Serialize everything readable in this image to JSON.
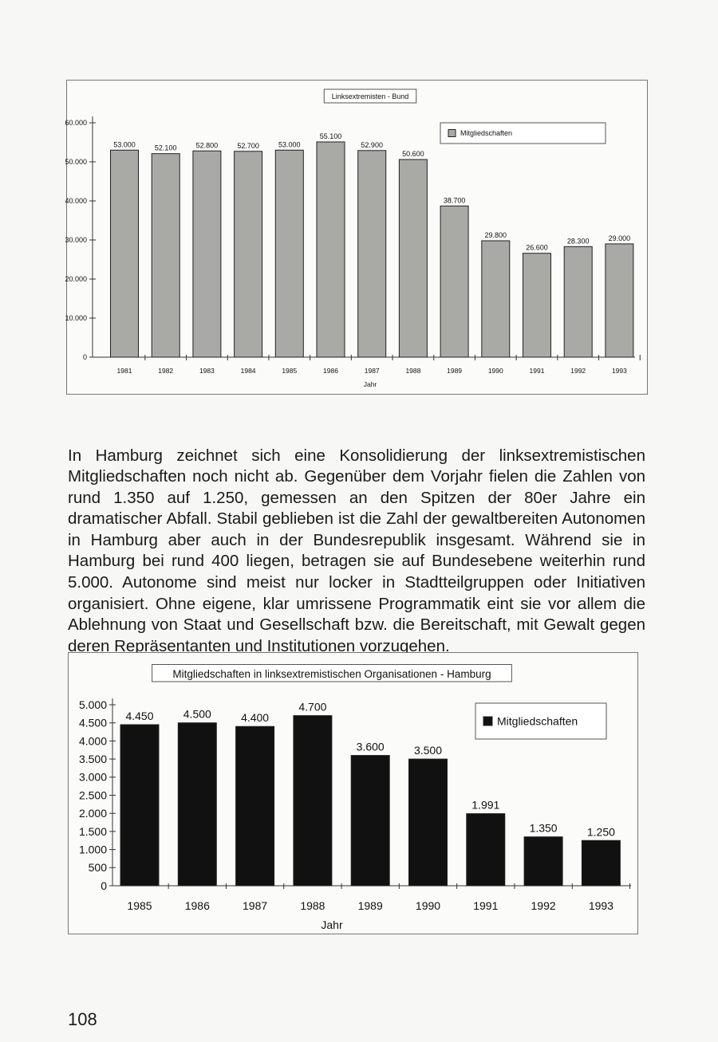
{
  "chart_data": [
    {
      "type": "bar",
      "title": "Linksextremisten - Bund",
      "xlabel": "Jahr",
      "ylabel": "",
      "legend": {
        "label": "Mitgliedschaften",
        "placement": "top-right"
      },
      "categories": [
        "1981",
        "1982",
        "1983",
        "1984",
        "1985",
        "1986",
        "1987",
        "1988",
        "1989",
        "1990",
        "1991",
        "1992",
        "1993"
      ],
      "values": [
        53000,
        52100,
        52800,
        52700,
        53000,
        55100,
        52900,
        50600,
        38700,
        29800,
        26600,
        28300,
        29000
      ],
      "value_labels": [
        "53.000",
        "52.100",
        "52.800",
        "52.700",
        "53.000",
        "55.100",
        "52.900",
        "50.600",
        "38.700",
        "29.800",
        "26.600",
        "28.300",
        "29.000"
      ],
      "ylim": [
        0,
        60000
      ],
      "yticks": [
        0,
        10000,
        20000,
        30000,
        40000,
        50000,
        60000
      ],
      "ytick_labels": [
        "0",
        "10.000",
        "20.000",
        "30.000",
        "40.000",
        "50.000",
        "60.000"
      ],
      "bar_color": "#a9a9a6",
      "grid": false
    },
    {
      "type": "bar",
      "title": "Mitgliedschaften in linksextremistischen Organisationen - Hamburg",
      "xlabel": "Jahr",
      "ylabel": "",
      "legend": {
        "label": "Mitgliedschaften",
        "placement": "top-right"
      },
      "categories": [
        "1985",
        "1986",
        "1987",
        "1988",
        "1989",
        "1990",
        "1991",
        "1992",
        "1993"
      ],
      "values": [
        4450,
        4500,
        4400,
        4700,
        3600,
        3500,
        1991,
        1350,
        1250
      ],
      "value_labels": [
        "4.450",
        "4.500",
        "4.400",
        "4.700",
        "3.600",
        "3.500",
        "1.991",
        "1.350",
        "1.250"
      ],
      "ylim": [
        0,
        5000
      ],
      "yticks": [
        0,
        500,
        1000,
        1500,
        2000,
        2500,
        3000,
        3500,
        4000,
        4500,
        5000
      ],
      "ytick_labels": [
        "0",
        "500",
        "1.000",
        "1.500",
        "2.000",
        "2.500",
        "3.000",
        "3.500",
        "4.000",
        "4.500",
        "5.000"
      ],
      "bar_color": "#111111",
      "grid": false
    }
  ],
  "text": "In Hamburg zeichnet sich eine Konsolidierung der linksextremistischen Mitgliedschaften noch nicht ab. Gegenüber dem Vorjahr fielen die Zahlen von rund 1.350 auf 1.250, gemessen an den Spitzen der 80er Jahre ein dramatischer Abfall. Stabil geblieben ist die Zahl der gewaltbereiten Autonomen in Hamburg aber auch in der Bundesrepublik insgesamt. Während sie in Hamburg bei rund 400 liegen, betragen sie auf Bundesebene weiterhin rund 5.000. Autonome sind meist nur locker in Stadtteilgruppen oder Initiativen organisiert. Ohne eigene, klar umrissene Programmatik eint sie vor allem die Ablehnung von Staat und Gesellschaft bzw. die Bereitschaft, mit Gewalt gegen deren Repräsentanten und Institutionen vorzugehen.",
  "page_number": "108"
}
